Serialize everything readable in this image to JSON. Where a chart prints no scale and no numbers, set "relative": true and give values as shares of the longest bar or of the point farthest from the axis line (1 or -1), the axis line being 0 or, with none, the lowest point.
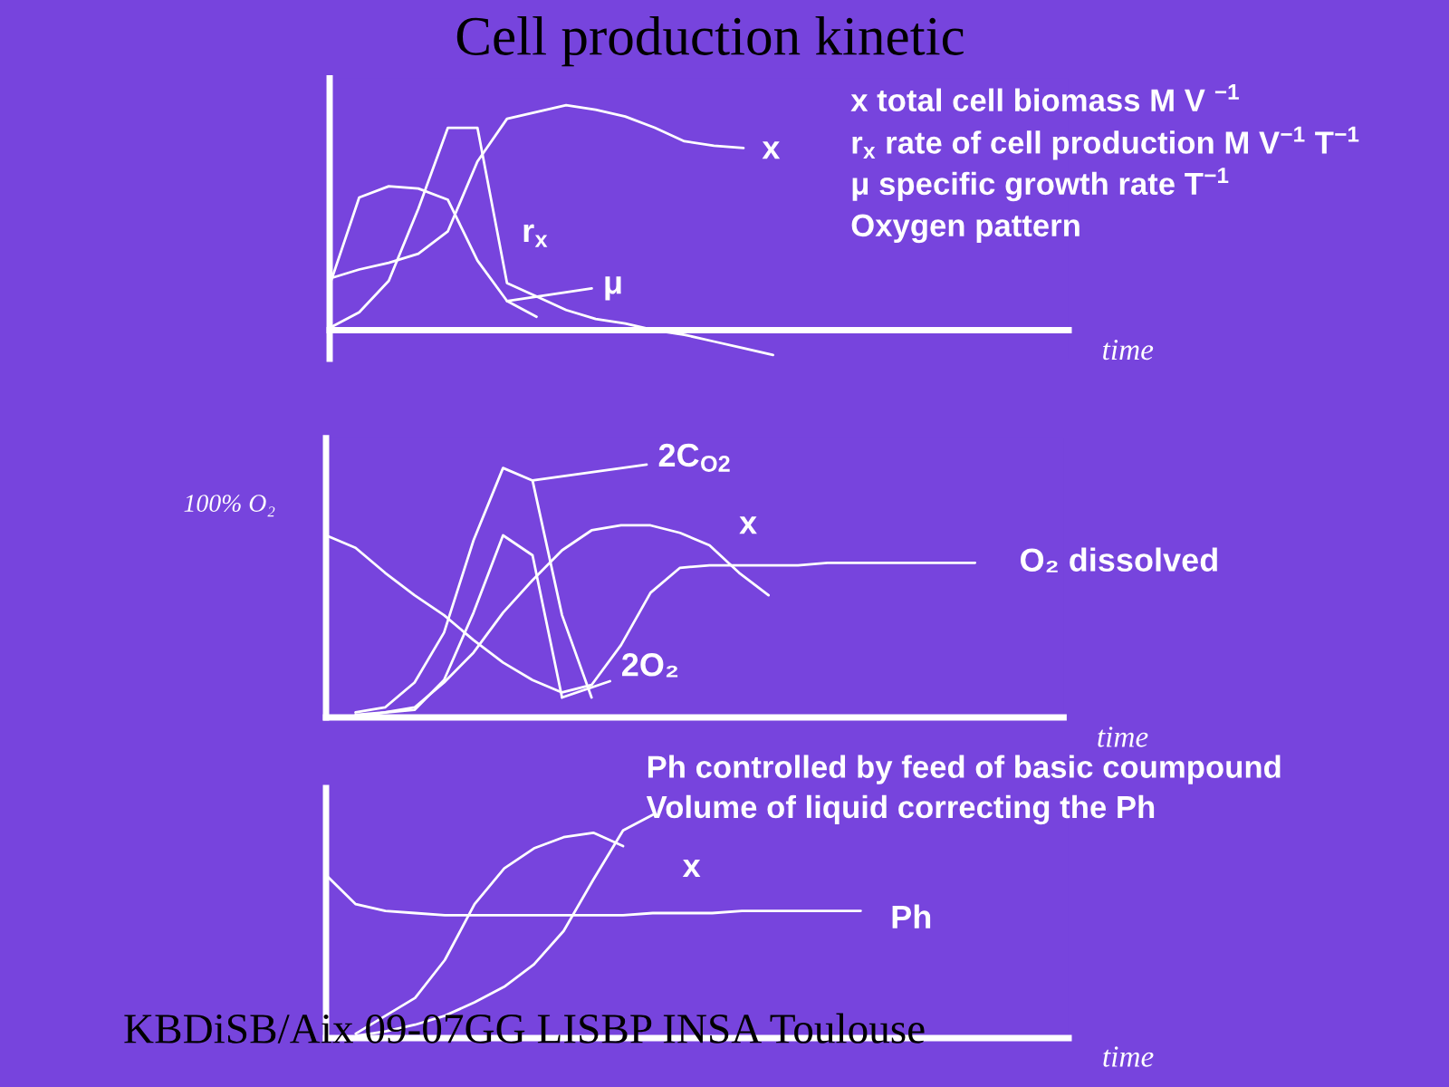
{
  "chart_data": [
    {
      "type": "line",
      "title": "Cell production kinetic",
      "relative": true,
      "xlabel": "time",
      "categories": [
        null,
        null,
        null,
        null,
        null,
        null,
        null,
        null,
        null,
        null,
        null,
        null,
        null,
        null,
        null,
        null,
        null,
        null,
        null,
        null,
        null,
        null,
        null,
        null,
        null,
        null
      ],
      "series": [
        {
          "name": "x",
          "color": "#ffffff",
          "values": [
            0.23,
            0.27,
            0.3,
            0.34,
            0.44,
            0.75,
            0.94,
            0.97,
            1.0,
            0.98,
            0.95,
            0.9,
            0.84,
            0.82,
            0.81,
            null,
            null,
            null,
            null,
            null,
            null,
            null,
            null,
            null,
            null,
            null
          ]
        },
        {
          "name": "r$_{x}$",
          "color": "#ffffff",
          "values": [
            0.01,
            0.08,
            0.22,
            0.54,
            0.9,
            0.9,
            0.21,
            0.15,
            0.09,
            0.05,
            0.03,
            0.0,
            -0.02,
            -0.05,
            -0.08,
            -0.11,
            null,
            null,
            null,
            null,
            null,
            null,
            null,
            null,
            null,
            null
          ]
        },
        {
          "name": "μ",
          "color": "#ffffff",
          "values": [
            0.2,
            0.59,
            0.64,
            0.63,
            0.58,
            0.31,
            0.13,
            0.06,
            null,
            null,
            null,
            null,
            null,
            null,
            null,
            null,
            null,
            null,
            null,
            null,
            null,
            null,
            null,
            null,
            null,
            null
          ]
        }
      ],
      "annotations": [
        "x total cell biomass M V $^{−1}$",
        "r$_{x}$ rate of cell production M V$^{−1}$ T$^{−1}$",
        "μ specific growth rate T$^{−1}$",
        "Oxygen pattern"
      ]
    },
    {
      "type": "line",
      "relative": true,
      "xlabel": "time",
      "categories": [
        null,
        null,
        null,
        null,
        null,
        null,
        null,
        null,
        null,
        null,
        null,
        null,
        null,
        null,
        null,
        null,
        null,
        null,
        null,
        null,
        null,
        null,
        null,
        null,
        null,
        null
      ],
      "series": [
        {
          "name": "O₂ dissolved",
          "color": "#ffffff",
          "values": [
            0.73,
            0.68,
            0.58,
            0.49,
            0.41,
            0.31,
            0.22,
            0.15,
            0.1,
            0.13,
            0.29,
            0.5,
            0.6,
            0.61,
            0.61,
            0.61,
            0.61,
            0.62,
            0.62,
            0.62,
            0.62,
            0.62,
            0.62,
            null,
            null,
            null
          ]
        },
        {
          "name": "x",
          "color": "#ffffff",
          "values": [
            null,
            0.01,
            0.02,
            0.04,
            0.14,
            0.26,
            0.42,
            0.55,
            0.67,
            0.75,
            0.77,
            0.77,
            0.74,
            0.69,
            0.58,
            0.49,
            null,
            null,
            null,
            null,
            null,
            null,
            null,
            null,
            null,
            null
          ]
        },
        {
          "name": "2C$_{O2}$",
          "color": "#ffffff",
          "values": [
            null,
            0.02,
            0.04,
            0.14,
            0.34,
            0.71,
            1.0,
            0.95,
            0.41,
            0.08,
            null,
            null,
            null,
            null,
            null,
            null,
            null,
            null,
            null,
            null,
            null,
            null,
            null,
            null,
            null,
            null
          ]
        },
        {
          "name": "2O₂",
          "color": "#ffffff",
          "values": [
            null,
            0.0,
            0.02,
            0.03,
            0.15,
            0.42,
            0.73,
            0.65,
            0.08,
            null,
            null,
            null,
            null,
            null,
            null,
            null,
            null,
            null,
            null,
            null,
            null,
            null,
            null,
            null,
            null,
            null
          ]
        }
      ],
      "annotations": [
        "100% O₂"
      ]
    },
    {
      "type": "line",
      "relative": true,
      "xlabel": "time",
      "categories": [
        null,
        null,
        null,
        null,
        null,
        null,
        null,
        null,
        null,
        null,
        null,
        null,
        null,
        null,
        null,
        null,
        null,
        null,
        null,
        null,
        null,
        null,
        null,
        null,
        null,
        null
      ],
      "series": [
        {
          "name": "Ph",
          "color": "#ffffff",
          "values": [
            0.73,
            0.6,
            0.57,
            0.56,
            0.55,
            0.55,
            0.55,
            0.55,
            0.55,
            0.55,
            0.55,
            0.56,
            0.56,
            0.56,
            0.57,
            0.57,
            0.57,
            0.57,
            0.57,
            null,
            null,
            null,
            null,
            null,
            null,
            null
          ]
        },
        {
          "name": "x",
          "color": "#ffffff",
          "values": [
            null,
            0.02,
            0.1,
            0.18,
            0.35,
            0.6,
            0.76,
            0.85,
            0.9,
            0.92,
            0.86,
            null,
            null,
            null,
            null,
            null,
            null,
            null,
            null,
            null,
            null,
            null,
            null,
            null,
            null,
            null
          ]
        },
        {
          "color": "#ffffff",
          "values": [
            null,
            0.01,
            0.03,
            0.06,
            0.1,
            0.16,
            0.23,
            0.33,
            0.48,
            0.71,
            0.93,
            1.0,
            null,
            null,
            null,
            null,
            null,
            null,
            null,
            null,
            null,
            null,
            null,
            null,
            null,
            null
          ]
        }
      ],
      "annotations": [
        "Ph controlled by feed of basic coumpound",
        "Volume of liquid correcting the Ph",
        "KBDiSB/Aix 09-07GG LISBP INSA Toulouse"
      ]
    }
  ]
}
